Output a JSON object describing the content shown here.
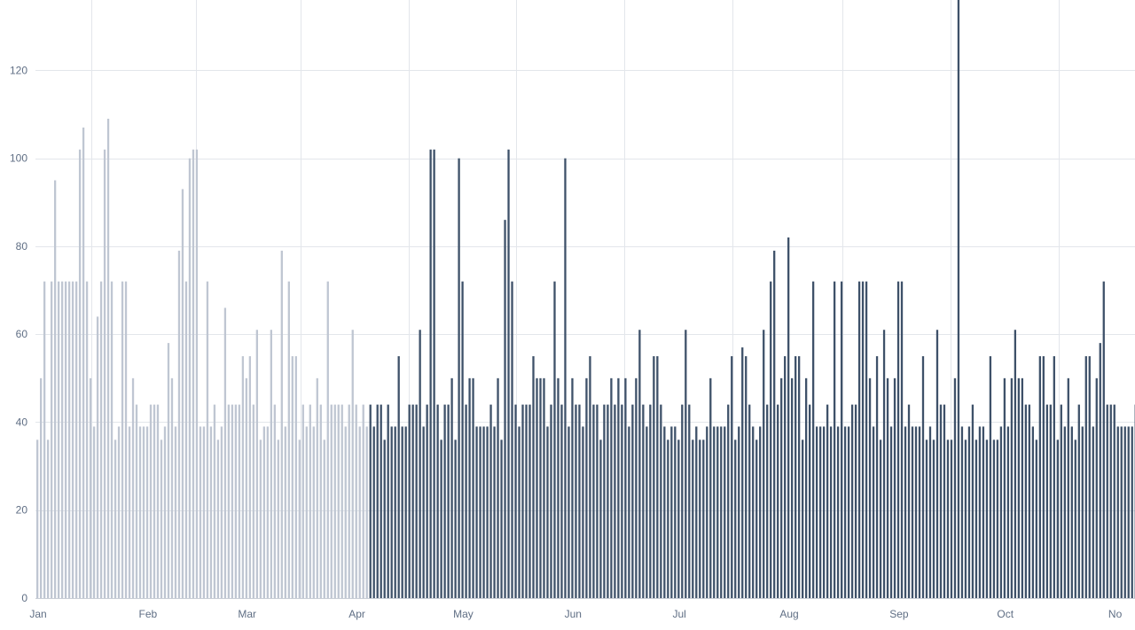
{
  "chart_data": {
    "type": "bar",
    "title": "",
    "xlabel": "",
    "ylabel": "",
    "ylim": [
      0,
      136
    ],
    "yticks": [
      0,
      20,
      40,
      60,
      80,
      100,
      120
    ],
    "grid": true,
    "legend": "none",
    "x_tick_labels": [
      "Jan",
      "Feb",
      "Mar",
      "Apr",
      "May",
      "Jun",
      "Jul",
      "Aug",
      "Sep",
      "Oct",
      "No"
    ],
    "colors": {
      "faded": "#bfc6d2",
      "solid": "#3e5169",
      "grid": "#e3e6eb",
      "text": "#5f6e84"
    },
    "series": [
      {
        "style": "faded",
        "start": "Jan 1",
        "values": [
          36,
          50,
          72,
          36,
          72,
          95,
          72,
          72,
          72,
          72,
          72,
          72,
          102,
          107,
          72,
          50,
          39,
          64,
          72,
          102,
          109,
          72,
          36,
          39,
          72,
          72,
          39,
          50,
          44,
          39,
          39,
          39,
          44,
          44,
          44,
          36,
          39,
          58,
          50,
          39,
          79,
          93,
          72,
          100,
          102,
          102,
          39,
          39,
          72,
          39,
          44,
          36,
          39,
          66,
          44,
          44,
          44,
          44,
          55,
          50,
          55,
          44,
          61,
          36,
          39,
          39,
          61,
          44,
          36,
          79,
          39,
          72,
          55,
          55,
          36,
          44,
          39,
          44,
          39,
          50,
          44,
          36,
          72,
          44,
          44,
          44,
          44,
          39,
          44,
          61,
          44,
          39,
          44,
          39
        ]
      },
      {
        "style": "solid",
        "start": "Apr 5",
        "values": [
          44,
          39,
          44,
          44,
          36,
          44,
          39,
          39,
          55,
          39,
          39,
          44,
          44,
          44,
          61,
          39,
          44,
          102,
          102,
          44,
          36,
          44,
          44,
          50,
          36,
          100,
          72,
          44,
          50,
          50,
          39,
          39,
          39,
          39,
          44,
          39,
          50,
          36,
          86,
          102,
          72,
          44,
          39,
          44,
          44,
          44,
          55,
          50,
          50,
          50,
          39,
          44,
          72,
          50,
          44,
          100,
          39,
          50,
          44,
          44,
          39,
          50,
          55,
          44,
          44,
          36,
          44,
          44,
          50,
          44,
          50,
          44,
          50,
          39,
          44,
          50,
          61,
          44,
          39,
          44,
          55,
          55,
          44,
          39,
          36,
          39,
          39,
          36,
          44,
          61,
          44,
          36,
          39,
          36,
          36,
          39,
          50,
          39,
          39,
          39,
          39,
          44,
          55,
          36,
          39,
          57,
          55,
          44,
          39,
          36,
          39,
          61,
          44,
          72,
          79,
          44,
          50,
          55,
          82,
          50,
          55,
          55,
          36,
          50,
          44,
          72,
          39,
          39,
          39,
          44,
          39,
          72,
          39,
          72,
          39,
          39,
          44,
          44,
          72,
          72,
          72,
          50,
          39,
          55,
          36,
          61,
          50,
          39,
          50,
          72,
          72,
          39,
          44,
          39,
          39,
          39,
          55,
          36,
          39,
          36,
          61,
          44,
          44,
          36,
          36,
          50,
          137,
          39,
          36,
          39,
          44,
          36,
          39,
          39,
          36,
          55,
          36,
          36,
          39,
          50,
          39,
          50,
          61,
          50,
          50,
          44,
          44,
          39,
          36,
          55,
          55,
          44,
          44,
          55,
          36,
          44,
          39,
          50,
          39,
          36,
          44,
          39,
          55,
          55,
          39,
          50,
          58,
          72,
          44,
          44,
          44,
          39,
          39,
          39,
          39,
          39,
          44,
          36,
          39
        ]
      }
    ]
  }
}
